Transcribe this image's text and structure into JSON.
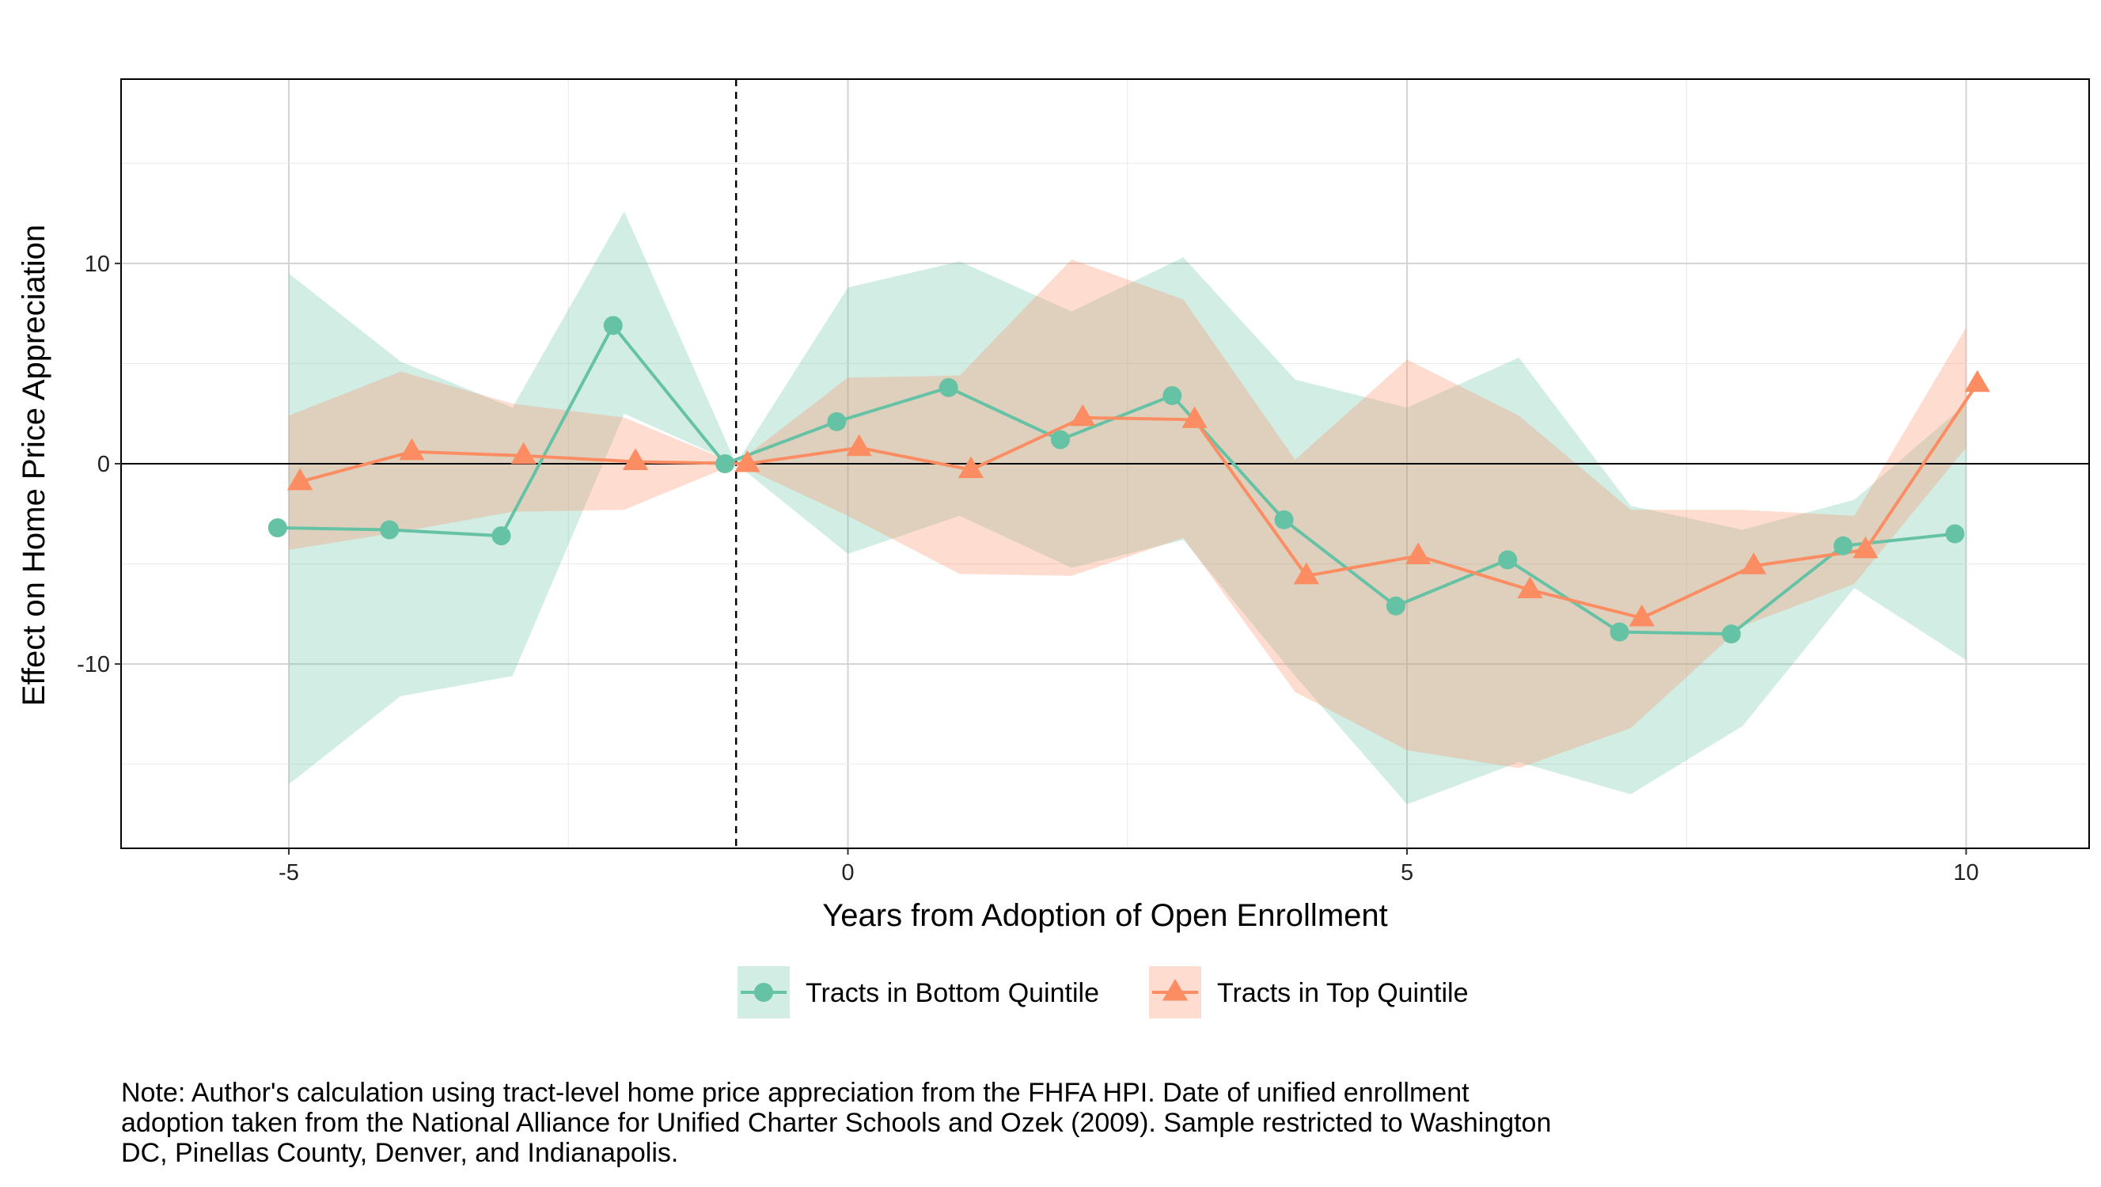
{
  "chart_data": {
    "type": "line",
    "xlabel": "Years from Adoption of Open Enrollment",
    "ylabel": "Effect on Home Price Appreciation",
    "xlim": [
      -6.5,
      11.1
    ],
    "ylim": [
      -19.2,
      19.2
    ],
    "x_ticks": [
      "-5",
      "0",
      "5",
      "10"
    ],
    "x_tick_values": [
      -5,
      0,
      5,
      10
    ],
    "y_ticks": [
      "-10",
      "0",
      "10"
    ],
    "y_tick_values": [
      -10,
      0,
      10
    ],
    "grid": true,
    "reference_lines": {
      "vertical_dashed_x": -1,
      "horizontal_solid_y": 0
    },
    "legend_position": "bottom",
    "series": [
      {
        "name": "Tracts in Bottom Quintile",
        "color": "#66c2a5",
        "marker": "circle",
        "x": [
          -5,
          -4,
          -3,
          -2,
          -1,
          0,
          1,
          2,
          3,
          4,
          5,
          6,
          7,
          8,
          9,
          10
        ],
        "values": [
          -3.2,
          -3.3,
          -3.6,
          6.9,
          0,
          2.1,
          3.8,
          1.2,
          3.4,
          -2.8,
          -7.1,
          -4.8,
          -8.4,
          -8.5,
          -4.1,
          -3.5
        ],
        "ci_upper": [
          9.5,
          5.1,
          2.8,
          12.6,
          0,
          8.8,
          10.1,
          7.6,
          10.3,
          4.2,
          2.8,
          5.3,
          -2.1,
          -3.3,
          -1.8,
          3.0
        ],
        "ci_lower": [
          -16.0,
          -11.6,
          -10.6,
          2.5,
          0,
          -4.5,
          -2.6,
          -5.2,
          -3.8,
          -10.6,
          -17.0,
          -14.9,
          -16.5,
          -13.1,
          -6.2,
          -9.8
        ]
      },
      {
        "name": "Tracts in Top Quintile",
        "color": "#fc8d62",
        "marker": "triangle",
        "x": [
          -5,
          -4,
          -3,
          -2,
          -1,
          0,
          1,
          2,
          3,
          4,
          5,
          6,
          7,
          8,
          9,
          10
        ],
        "values": [
          -0.9,
          0.6,
          0.4,
          0.1,
          0,
          0.8,
          -0.3,
          2.3,
          2.2,
          -5.6,
          -4.6,
          -6.3,
          -7.7,
          -5.1,
          -4.3,
          4.0
        ],
        "ci_upper": [
          2.4,
          4.6,
          3.0,
          2.3,
          0,
          4.3,
          4.4,
          10.2,
          8.2,
          0.2,
          5.2,
          2.4,
          -2.3,
          -2.3,
          -2.6,
          6.8
        ],
        "ci_lower": [
          -4.3,
          -3.4,
          -2.4,
          -2.3,
          0,
          -2.6,
          -5.5,
          -5.6,
          -3.7,
          -11.4,
          -14.3,
          -15.2,
          -13.2,
          -8.1,
          -6.0,
          0.8
        ]
      }
    ]
  },
  "note": {
    "lines": [
      "Note: Author's calculation using tract-level home price appreciation from the FHFA HPI.  Date of unified enrollment",
      "adoption taken from the National Alliance for Unified Charter Schools and Ozek (2009). Sample restricted to Washington",
      "DC, Pinellas County, Denver, and Indianapolis."
    ]
  }
}
